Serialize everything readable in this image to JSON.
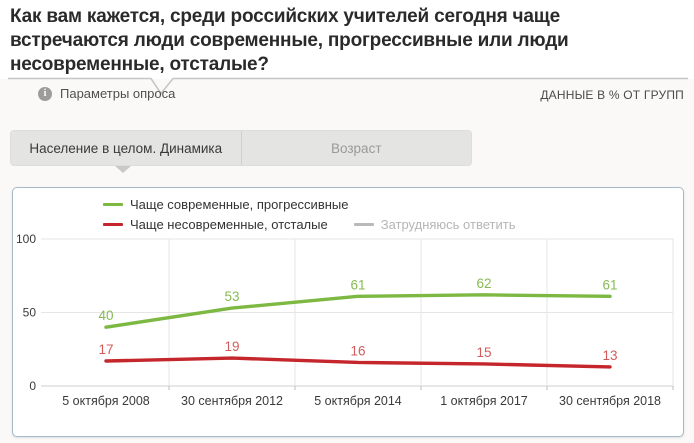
{
  "header": {
    "title": "Как вам кажется, среди российских учителей сегодня чаще встречаются люди современные, прогрессивные или люди несовременные, отсталые?",
    "survey_params_label": "Параметры опроса",
    "info_icon_glyph": "i",
    "data_note": "ДАННЫЕ В % ОТ ГРУПП"
  },
  "tabs": [
    {
      "label": "Население в целом. Динамика",
      "active": true
    },
    {
      "label": "Возраст",
      "active": false
    }
  ],
  "chart_data": {
    "type": "line",
    "categories": [
      "5 октября 2008",
      "30 сентября 2012",
      "5 октября 2014",
      "1 октября 2017",
      "30 сентября 2018"
    ],
    "series": [
      {
        "name": "Чаще современные, прогрессивные",
        "values": [
          40,
          53,
          61,
          62,
          61
        ],
        "color": "#7db843",
        "label_color": "#86ba52",
        "visible": true
      },
      {
        "name": "Чаще несовременные, отсталые",
        "values": [
          17,
          19,
          16,
          15,
          13
        ],
        "color": "#c4262c",
        "label_color": "#d25c5c",
        "visible": true
      },
      {
        "name": "Затрудняюсь ответить",
        "values": [],
        "color": "#b9b9b9",
        "visible": false
      }
    ],
    "ylim": [
      0,
      100
    ],
    "yticks": [
      0,
      50,
      100
    ],
    "grid": true,
    "legend_position": "top-center",
    "units": "% от групп"
  },
  "colors": {
    "grid_line": "#e6e6e6",
    "axis_line": "#cfcfcf",
    "axis_text": "#3a3a3a",
    "legend_hidden_text": "#b5b5b5",
    "card_border": "#a7b9c6"
  }
}
